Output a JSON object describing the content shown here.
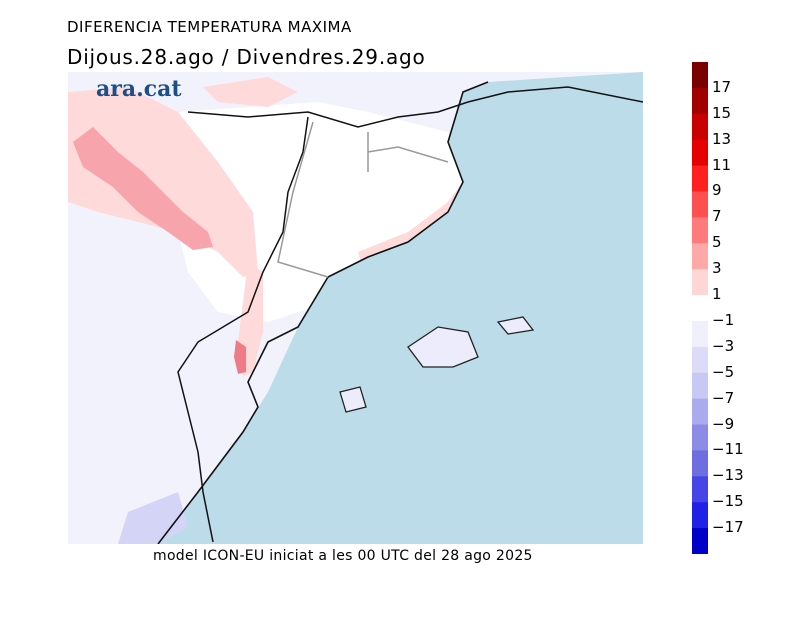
{
  "title": "DIFERENCIA TEMPERATURA MAXIMA",
  "subtitle": "Dijous.28.ago / Divendres.29.ago",
  "logo": "ara.cat",
  "footer": "model ICON-EU iniciat a les 00 UTC del 28 ago 2025",
  "colorbar": {
    "labels": [
      "17",
      "15",
      "13",
      "11",
      "9",
      "7",
      "5",
      "3",
      "1",
      "−1",
      "−3",
      "−5",
      "−7",
      "−9",
      "−11",
      "−13",
      "−15",
      "−17"
    ],
    "colors": [
      "#7a0000",
      "#a00000",
      "#c80000",
      "#e60000",
      "#ff2020",
      "#ff5050",
      "#ff7a7a",
      "#ffa8a8",
      "#ffd6d6",
      "#ffffff",
      "#f0f0fc",
      "#dcdcf8",
      "#c8c8f4",
      "#aaaaee",
      "#8c8ce6",
      "#6e6ee0",
      "#4646e6",
      "#2020e6",
      "#0000c8"
    ]
  },
  "map_colors": {
    "sea": "#bcdce9",
    "cool_land": "#ececfc",
    "warm_light": "#ffdada",
    "warm_mid": "#f7a4ad",
    "warm_strong": "#ee7b86",
    "cold_mid": "#d4d4f6"
  }
}
